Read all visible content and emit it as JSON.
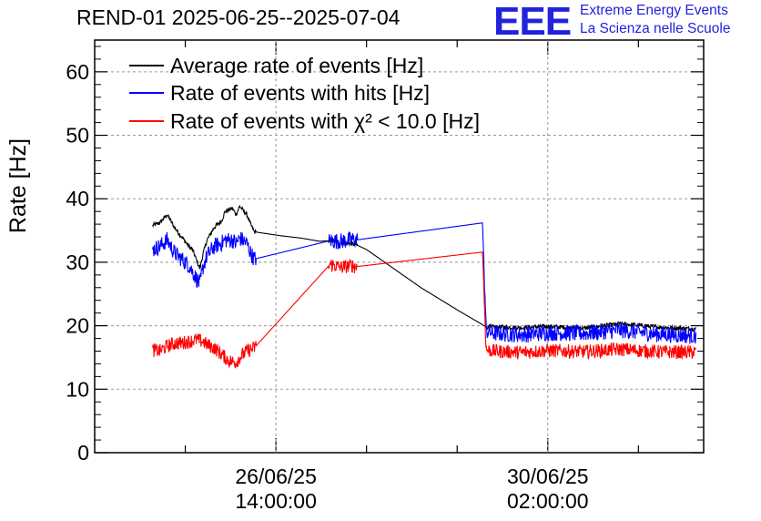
{
  "title": "REND-01 2025-06-25--2025-07-04",
  "logo": {
    "mark": "EEE",
    "line1": "Extreme Energy Events",
    "line2": "La Scienza nelle Scuole",
    "color": "#2222dd"
  },
  "chart_data": {
    "type": "line",
    "ylabel": "Rate [Hz]",
    "xlabel": "",
    "ylim": [
      0,
      65
    ],
    "xlim_hours": [
      0,
      168
    ],
    "yticks": [
      0,
      10,
      20,
      30,
      40,
      50,
      60
    ],
    "xticks_major": [
      {
        "hour": 50,
        "line1": "26/06/25",
        "line2": "14:00:00"
      },
      {
        "hour": 125,
        "line1": "30/06/25",
        "line2": "02:00:00"
      }
    ],
    "x_minor_step_hours": 25,
    "grid": true,
    "legend_position": "top-left",
    "series": [
      {
        "name": "Average rate of events [Hz]",
        "color": "#000000",
        "noise": 0.35,
        "points": [
          [
            16,
            35.8
          ],
          [
            18,
            36.2
          ],
          [
            20,
            37.5
          ],
          [
            21,
            36.5
          ],
          [
            22,
            35.5
          ],
          [
            24,
            34
          ],
          [
            26,
            32.5
          ],
          [
            27,
            32
          ],
          [
            28,
            30.5
          ],
          [
            29,
            29
          ],
          [
            30,
            31.5
          ],
          [
            31,
            33.5
          ],
          [
            33,
            35.5
          ],
          [
            35,
            36.5
          ],
          [
            36,
            38
          ],
          [
            38,
            38.5
          ],
          [
            39,
            37.5
          ],
          [
            40,
            38.8
          ],
          [
            42,
            37.5
          ],
          [
            43,
            36
          ],
          [
            44,
            34.8
          ],
          [
            51,
            34.2
          ],
          [
            57,
            33.8
          ],
          [
            62,
            33.3
          ],
          [
            65,
            33.4
          ],
          [
            68,
            33.1
          ],
          [
            71,
            32.9
          ],
          [
            72,
            32.8
          ],
          [
            75,
            32
          ],
          [
            80,
            30
          ],
          [
            90,
            26
          ],
          [
            100,
            22.5
          ],
          [
            106,
            20.5
          ],
          [
            108,
            19.8
          ],
          [
            112,
            19.8
          ],
          [
            118,
            19.7
          ],
          [
            125,
            19.9
          ],
          [
            135,
            19.6
          ],
          [
            145,
            20.3
          ],
          [
            155,
            19.8
          ],
          [
            166,
            19.5
          ]
        ]
      },
      {
        "name": "Rate of events with hits [Hz]",
        "color": "#0000ff",
        "noise": 1.3,
        "points": [
          [
            16,
            32
          ],
          [
            18,
            32.5
          ],
          [
            20,
            33.5
          ],
          [
            21,
            32.5
          ],
          [
            22,
            31.5
          ],
          [
            24,
            30.5
          ],
          [
            26,
            29.5
          ],
          [
            27,
            28.5
          ],
          [
            28,
            27.5
          ],
          [
            29,
            26.5
          ],
          [
            30,
            29.5
          ],
          [
            31,
            31
          ],
          [
            33,
            32.5
          ],
          [
            35,
            33
          ],
          [
            36,
            33.5
          ],
          [
            38,
            33.5
          ],
          [
            39,
            33
          ],
          [
            40,
            33.8
          ],
          [
            42,
            33
          ],
          [
            43,
            31.5
          ],
          [
            44,
            30.5
          ],
          [
            65,
            33.4
          ],
          [
            68,
            33.3
          ],
          [
            71,
            33.6
          ],
          [
            72,
            33.5
          ],
          [
            107,
            36.2
          ],
          [
            108,
            19.2
          ],
          [
            110,
            18.8
          ],
          [
            118,
            18.6
          ],
          [
            125,
            18.9
          ],
          [
            135,
            18.8
          ],
          [
            145,
            19.3
          ],
          [
            155,
            18.7
          ],
          [
            166,
            18.4
          ]
        ]
      },
      {
        "name": "Rate of events with χ² < 10.0 [Hz]",
        "color": "#ff0000",
        "noise": 1.1,
        "points": [
          [
            16,
            16.2
          ],
          [
            18,
            16
          ],
          [
            20,
            16.8
          ],
          [
            22,
            17.2
          ],
          [
            24,
            17.3
          ],
          [
            26,
            17.5
          ],
          [
            28,
            17.8
          ],
          [
            30,
            17.5
          ],
          [
            31,
            17
          ],
          [
            33,
            16.5
          ],
          [
            35,
            15.5
          ],
          [
            37,
            14.5
          ],
          [
            39,
            14.2
          ],
          [
            40,
            15
          ],
          [
            42,
            16
          ],
          [
            44,
            16.5
          ],
          [
            65,
            29.7
          ],
          [
            68,
            29.2
          ],
          [
            71,
            29.5
          ],
          [
            72,
            29.3
          ],
          [
            107,
            31.6
          ],
          [
            108,
            16.2
          ],
          [
            110,
            16
          ],
          [
            118,
            15.8
          ],
          [
            125,
            16.1
          ],
          [
            135,
            15.9
          ],
          [
            145,
            16.3
          ],
          [
            155,
            15.9
          ],
          [
            166,
            15.8
          ]
        ]
      }
    ],
    "gaps": [
      [
        44.5,
        64.5
      ],
      [
        72.5,
        107.5
      ]
    ]
  }
}
